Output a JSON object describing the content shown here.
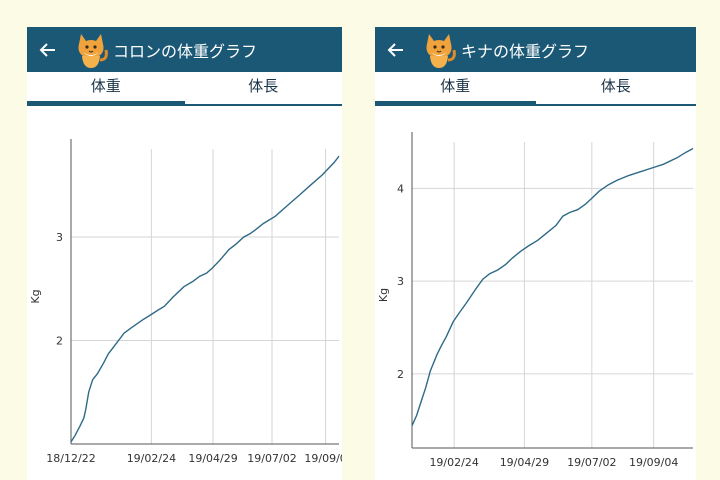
{
  "screens": [
    {
      "title": "コロンの体重グラフ",
      "tabs": [
        "体重",
        "体長"
      ],
      "active_tab": 0
    },
    {
      "title": "キナの体重グラフ",
      "tabs": [
        "体重",
        "体長"
      ],
      "active_tab": 0
    }
  ],
  "colors": {
    "appbar": "#1b5876",
    "line": "#2f6a86",
    "grid": "#d6d6d6",
    "background": "#fbfbe6"
  },
  "icons": {
    "back": "arrow-left-icon",
    "avatar": "cat-icon"
  },
  "chart_data": [
    {
      "type": "line",
      "ylabel": "Kg",
      "xlabel": "",
      "ylim": [
        1.0,
        3.85
      ],
      "x_ticks": [
        "18/12/22",
        "19/02/24",
        "19/04/29",
        "19/07/02",
        "19/09/0"
      ],
      "y_ticks": [
        "2",
        "3"
      ],
      "points": [
        [
          0,
          1.02
        ],
        [
          4,
          1.08
        ],
        [
          9,
          1.17
        ],
        [
          13,
          1.25
        ],
        [
          15,
          1.33
        ],
        [
          18,
          1.5
        ],
        [
          22,
          1.62
        ],
        [
          27,
          1.68
        ],
        [
          33,
          1.78
        ],
        [
          38,
          1.87
        ],
        [
          46,
          1.97
        ],
        [
          54,
          2.07
        ],
        [
          61,
          2.12
        ],
        [
          73,
          2.2
        ],
        [
          80,
          2.24
        ],
        [
          88,
          2.29
        ],
        [
          95,
          2.33
        ],
        [
          104,
          2.42
        ],
        [
          115,
          2.52
        ],
        [
          124,
          2.57
        ],
        [
          131,
          2.62
        ],
        [
          138,
          2.65
        ],
        [
          144,
          2.7
        ],
        [
          152,
          2.78
        ],
        [
          161,
          2.88
        ],
        [
          168,
          2.93
        ],
        [
          176,
          3.0
        ],
        [
          182,
          3.03
        ],
        [
          188,
          3.07
        ],
        [
          196,
          3.13
        ],
        [
          208,
          3.2
        ],
        [
          220,
          3.3
        ],
        [
          232,
          3.4
        ],
        [
          244,
          3.5
        ],
        [
          256,
          3.6
        ],
        [
          268,
          3.72
        ],
        [
          273,
          3.78
        ]
      ]
    },
    {
      "type": "line",
      "ylabel": "Kg",
      "xlabel": "",
      "ylim": [
        1.2,
        4.5
      ],
      "x_ticks": [
        "19/02/24",
        "19/04/29",
        "19/07/02",
        "19/09/04"
      ],
      "y_ticks": [
        "2",
        "3",
        "4"
      ],
      "points": [
        [
          0,
          1.44
        ],
        [
          4,
          1.55
        ],
        [
          8,
          1.7
        ],
        [
          12,
          1.85
        ],
        [
          16,
          2.03
        ],
        [
          22,
          2.21
        ],
        [
          26,
          2.31
        ],
        [
          30,
          2.4
        ],
        [
          36,
          2.56
        ],
        [
          41,
          2.65
        ],
        [
          48,
          2.77
        ],
        [
          55,
          2.9
        ],
        [
          62,
          3.02
        ],
        [
          68,
          3.08
        ],
        [
          75,
          3.12
        ],
        [
          82,
          3.18
        ],
        [
          88,
          3.25
        ],
        [
          95,
          3.32
        ],
        [
          102,
          3.38
        ],
        [
          110,
          3.44
        ],
        [
          118,
          3.52
        ],
        [
          126,
          3.6
        ],
        [
          132,
          3.7
        ],
        [
          138,
          3.74
        ],
        [
          145,
          3.77
        ],
        [
          152,
          3.83
        ],
        [
          158,
          3.9
        ],
        [
          164,
          3.97
        ],
        [
          172,
          4.04
        ],
        [
          180,
          4.09
        ],
        [
          190,
          4.14
        ],
        [
          200,
          4.18
        ],
        [
          210,
          4.22
        ],
        [
          220,
          4.26
        ],
        [
          232,
          4.33
        ],
        [
          240,
          4.39
        ],
        [
          246,
          4.43
        ]
      ]
    }
  ]
}
